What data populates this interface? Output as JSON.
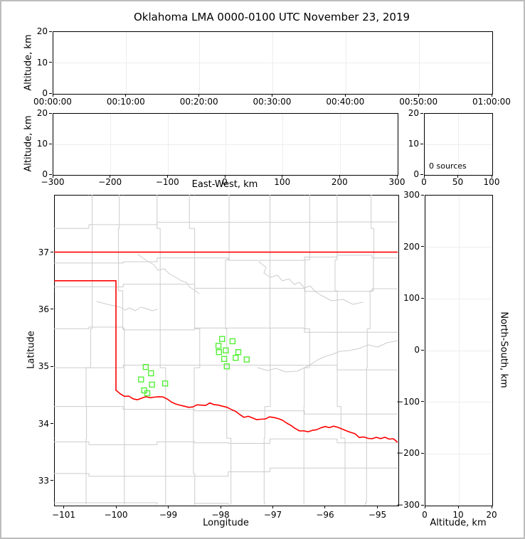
{
  "title": "Oklahoma LMA 0000-0100 UTC November 23, 2019",
  "colors": {
    "source_marker": "#55f038",
    "state_border": "#ff0000",
    "county_lines": "#cccccc",
    "gridlines": "#ededed",
    "spines": "#000000",
    "figure_frame": "#bdbdbd"
  },
  "chart_data": [
    {
      "id": "time_height",
      "type": "scatter",
      "description": "Altitude vs time panel (empty, no sources)",
      "xlabel": "",
      "ylabel": "Altitude, km",
      "xlim": [
        0,
        60
      ],
      "ylim": [
        0,
        20
      ],
      "xtick_values": [
        0,
        10,
        20,
        30,
        40,
        50,
        60
      ],
      "xtick_labels": [
        "00:00:00",
        "00:10:00",
        "00:20:00",
        "00:30:00",
        "00:40:00",
        "00:50:00",
        "01:00:00"
      ],
      "ytick_values": [
        0,
        10,
        20
      ],
      "ytick_labels": [
        "0",
        "10",
        "20"
      ],
      "grid": true,
      "points": []
    },
    {
      "id": "ew_height",
      "type": "scatter",
      "description": "Altitude vs East-West distance panel (empty, no sources)",
      "xlabel": "East-West, km",
      "ylabel": "Altitude, km",
      "xlim": [
        -300,
        300
      ],
      "ylim": [
        0,
        20
      ],
      "xtick_values": [
        -300,
        -200,
        -100,
        0,
        100,
        200,
        300
      ],
      "xtick_labels": [
        "−300",
        "−200",
        "−100",
        "0",
        "100",
        "200",
        "300"
      ],
      "ytick_values": [
        0,
        10,
        20
      ],
      "ytick_labels": [
        "0",
        "10",
        "20"
      ],
      "grid": true,
      "points": []
    },
    {
      "id": "alt_hist",
      "type": "line",
      "description": "Altitude histogram panel",
      "xlabel": "",
      "ylabel": "",
      "xlim": [
        0,
        100
      ],
      "ylim": [
        0,
        20
      ],
      "xtick_values": [
        0,
        50,
        100
      ],
      "xtick_labels": [
        "0",
        "50",
        "100"
      ],
      "ytick_values": [
        0,
        10,
        20
      ],
      "ytick_labels": [
        "0",
        "10",
        "20"
      ],
      "grid": true,
      "annotation": "0 sources",
      "points": []
    },
    {
      "id": "map",
      "type": "scatter",
      "description": "Plan-view map of Oklahoma with VHF source locations",
      "xlabel": "Longitude",
      "ylabel": "Latitude",
      "xlim": [
        -101.184,
        -94.612
      ],
      "ylim": [
        32.575,
        38.004
      ],
      "xtick_values": [
        -101,
        -100,
        -99,
        -98,
        -97,
        -96,
        -95
      ],
      "xtick_labels": [
        "−101",
        "−100",
        "−99",
        "−98",
        "−97",
        "−96",
        "−95"
      ],
      "ytick_values": [
        33,
        34,
        35,
        36,
        37
      ],
      "ytick_labels": [
        "33",
        "34",
        "35",
        "36",
        "37"
      ],
      "grid": false,
      "marker": "open-square",
      "marker_color": "#55f038",
      "points": [
        [
          -97.97,
          35.48
        ],
        [
          -97.77,
          35.44
        ],
        [
          -98.04,
          35.36
        ],
        [
          -97.9,
          35.28
        ],
        [
          -98.03,
          35.25
        ],
        [
          -97.66,
          35.25
        ],
        [
          -97.93,
          35.13
        ],
        [
          -97.71,
          35.15
        ],
        [
          -97.5,
          35.12
        ],
        [
          -97.88,
          35.0
        ],
        [
          -99.43,
          34.99
        ],
        [
          -99.33,
          34.88
        ],
        [
          -99.52,
          34.77
        ],
        [
          -99.31,
          34.68
        ],
        [
          -99.06,
          34.7
        ],
        [
          -99.46,
          34.58
        ],
        [
          -99.4,
          34.53
        ]
      ]
    },
    {
      "id": "ns_height",
      "type": "scatter",
      "description": "North-South distance vs altitude panel (empty, no sources)",
      "xlabel": "Altitude, km",
      "ylabel": "North-South, km",
      "ylabel_side": "right",
      "xlim": [
        0,
        20
      ],
      "ylim": [
        -300,
        300
      ],
      "xtick_values": [
        0,
        10,
        20
      ],
      "xtick_labels": [
        "0",
        "10",
        "20"
      ],
      "ytick_values": [
        -300,
        -200,
        -100,
        0,
        100,
        200,
        300
      ],
      "ytick_labels": [
        "−300",
        "−200",
        "−100",
        "0",
        "100",
        "200",
        "300"
      ],
      "grid": true,
      "points": []
    }
  ]
}
